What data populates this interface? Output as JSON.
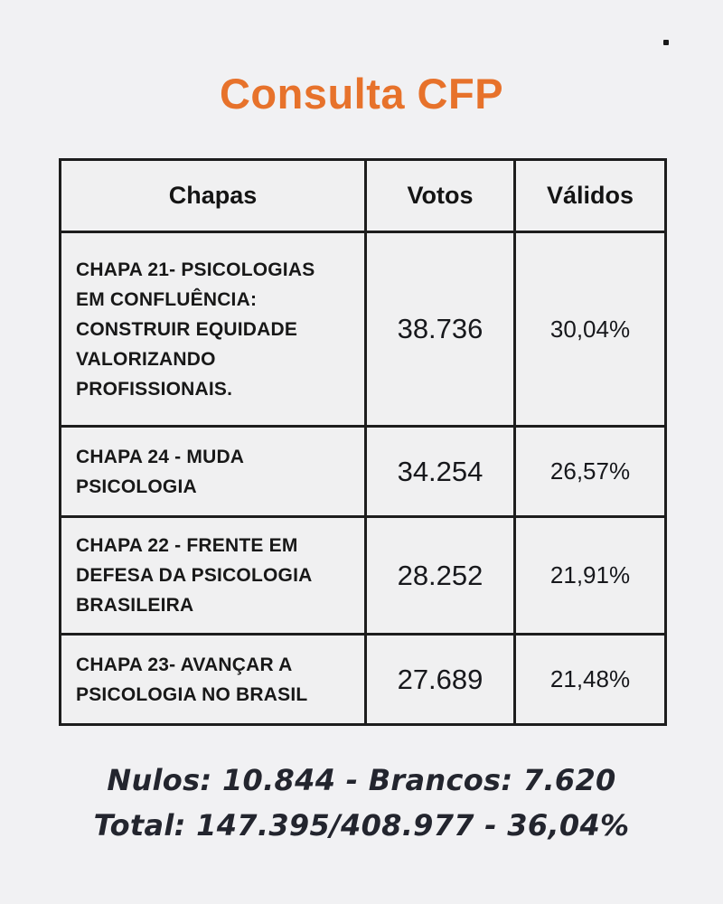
{
  "page": {
    "title": "Consulta CFP",
    "accent_color": "#e7722b",
    "background_color": "#f1f1f3",
    "border_color": "#1d1d1d"
  },
  "table": {
    "headers": {
      "chapas": "Chapas",
      "votos": "Votos",
      "validos": "Válidos"
    },
    "rows": [
      {
        "name": "CHAPA 21- PSICOLOGIAS EM CONFLUÊNCIA: CONSTRUIR EQUIDADE VALORIZANDO PROFISSIONAIS.",
        "votes": "38.736",
        "valid_pct": "30,04%"
      },
      {
        "name": "CHAPA 24 - MUDA PSICOLOGIA",
        "votes": "34.254",
        "valid_pct": "26,57%"
      },
      {
        "name": "CHAPA 22 - FRENTE EM DEFESA DA PSICOLOGIA BRASILEIRA",
        "votes": "28.252",
        "valid_pct": "21,91%"
      },
      {
        "name": "CHAPA 23- AVANÇAR A PSICOLOGIA NO BRASIL",
        "votes": "27.689",
        "valid_pct": "21,48%"
      }
    ]
  },
  "footer": {
    "line1": "Nulos: 10.844 - Brancos: 7.620",
    "line2": "Total: 147.395/408.977 - 36,04%"
  },
  "chart_data": {
    "type": "table",
    "title": "Consulta CFP",
    "columns": [
      "Chapas",
      "Votos",
      "Válidos"
    ],
    "rows": [
      [
        "CHAPA 21- PSICOLOGIAS EM CONFLUÊNCIA: CONSTRUIR EQUIDADE VALORIZANDO PROFISSIONAIS.",
        "38.736",
        "30,04%"
      ],
      [
        "CHAPA 24 - MUDA PSICOLOGIA",
        "34.254",
        "26,57%"
      ],
      [
        "CHAPA 22 - FRENTE EM DEFESA DA PSICOLOGIA BRASILEIRA",
        "28.252",
        "21,91%"
      ],
      [
        "CHAPA 23- AVANÇAR A PSICOLOGIA NO BRASIL",
        "27.689",
        "21,48%"
      ]
    ],
    "values": {
      "votes": [
        38736,
        34254,
        28252,
        27689
      ],
      "valid_pct": [
        30.04,
        26.57,
        21.91,
        21.48
      ],
      "nulos": 10844,
      "brancos": 7620,
      "total_votantes": 147395,
      "total_aptos": 408977,
      "participacao_pct": 36.04
    },
    "notes": [
      "Nulos: 10.844 - Brancos: 7.620",
      "Total: 147.395/408.977 - 36,04%"
    ]
  }
}
